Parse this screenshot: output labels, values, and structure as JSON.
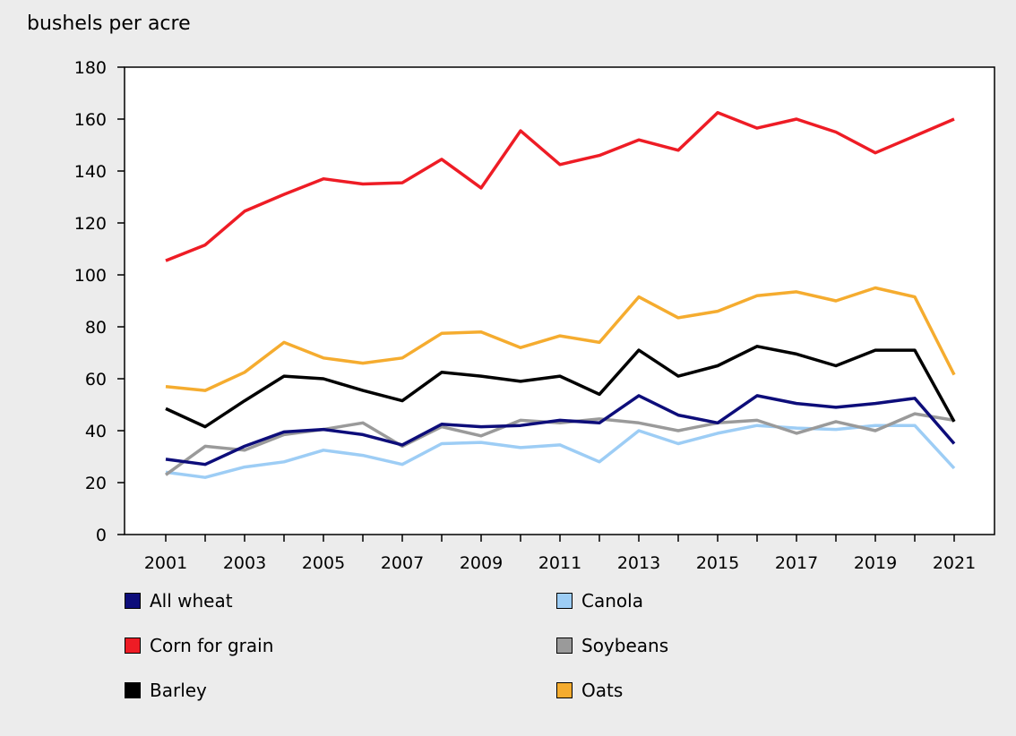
{
  "chart_data": {
    "type": "line",
    "ylabel": "bushels per acre",
    "xlabel": "",
    "ylim": [
      0,
      180
    ],
    "yticks": [
      0,
      20,
      40,
      60,
      80,
      100,
      120,
      140,
      160,
      180
    ],
    "xticks": [
      "2001",
      "2003",
      "2005",
      "2007",
      "2009",
      "2011",
      "2013",
      "2015",
      "2017",
      "2019",
      "2021"
    ],
    "x": [
      2001,
      2002,
      2003,
      2004,
      2005,
      2006,
      2007,
      2008,
      2009,
      2010,
      2011,
      2012,
      2013,
      2014,
      2015,
      2016,
      2017,
      2018,
      2019,
      2020,
      2021
    ],
    "legend_placement": "bottom",
    "grid": false,
    "series": [
      {
        "name": "All wheat",
        "color": "#0d0d7a",
        "values": [
          29,
          27,
          34,
          39.5,
          40.5,
          38.5,
          34.5,
          42.5,
          41.5,
          42,
          44,
          43,
          53.5,
          46,
          43,
          53.5,
          50.5,
          49,
          50.5,
          52.5,
          35
        ]
      },
      {
        "name": "Corn for grain",
        "color": "#ee1c25",
        "values": [
          105.5,
          111.5,
          124.5,
          131,
          137,
          135,
          135.5,
          144.5,
          133.5,
          155.5,
          142.5,
          146,
          152,
          148,
          162.5,
          156.5,
          160,
          155,
          147,
          153.5,
          160
        ]
      },
      {
        "name": "Barley",
        "color": "#000000",
        "values": [
          48.5,
          41.5,
          51.5,
          61,
          60,
          55.5,
          51.5,
          62.5,
          61,
          59,
          61,
          54,
          71,
          61,
          65,
          72.5,
          69.5,
          65,
          71,
          71,
          43.5
        ]
      },
      {
        "name": "Canola",
        "color": "#9dcdf5",
        "values": [
          24,
          22,
          26,
          28,
          32.5,
          30.5,
          27,
          35,
          35.5,
          33.5,
          34.5,
          28,
          40,
          35,
          39,
          42,
          41,
          40.5,
          42,
          42,
          25.5
        ]
      },
      {
        "name": "Soybeans",
        "color": "#9a9a9a",
        "values": [
          23,
          34,
          32.5,
          38.5,
          40.5,
          43,
          34,
          41.5,
          38,
          44,
          43,
          44.5,
          43,
          40,
          43,
          44,
          39,
          43.5,
          40,
          46.5,
          44
        ]
      },
      {
        "name": "Oats",
        "color": "#f5ac2f",
        "values": [
          57,
          55.5,
          62.5,
          74,
          68,
          66,
          68,
          77.5,
          78,
          72,
          76.5,
          74,
          91.5,
          83.5,
          86,
          92,
          93.5,
          90,
          95,
          91.5,
          61.5
        ]
      }
    ]
  }
}
